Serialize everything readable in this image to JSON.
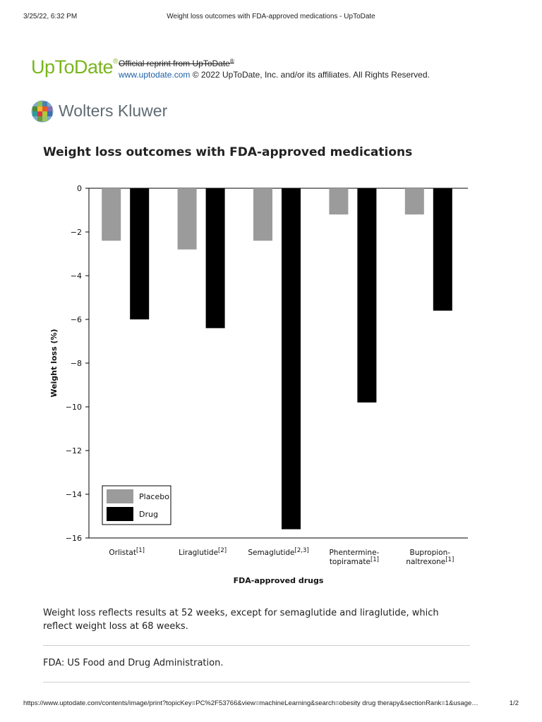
{
  "print_header": {
    "datetime": "3/25/22, 6:32 PM",
    "title": "Weight loss outcomes with FDA-approved medications - UpToDate"
  },
  "brand": {
    "logo_text": "UpToDate",
    "logo_mark": "®",
    "reprint_text": "Official reprint from UpToDate",
    "reprint_mark": "®",
    "site_link": "www.uptodate.com",
    "copyright": "© 2022 UpToDate, Inc. and/or its affiliates. All Rights Reserved."
  },
  "publisher": {
    "name": "Wolters Kluwer",
    "icon": "wolters-kluwer-globe-icon"
  },
  "figure_title": "Weight loss outcomes with FDA-approved medications",
  "chart_data": {
    "type": "bar",
    "xlabel": "FDA-approved drugs",
    "ylabel": "Weight loss (%)",
    "ylim": [
      -16,
      0
    ],
    "yticks": [
      0,
      -2,
      -4,
      -6,
      -8,
      -10,
      -12,
      -14,
      -16
    ],
    "ytick_labels": [
      "0",
      "−2",
      "−4",
      "−6",
      "−8",
      "−10",
      "−12",
      "−14",
      "−16"
    ],
    "categories": [
      {
        "lines": [
          "Orlistat"
        ],
        "ref": "[1]"
      },
      {
        "lines": [
          "Liraglutide"
        ],
        "ref": "[2]"
      },
      {
        "lines": [
          "Semaglutide"
        ],
        "ref": "[2,3]"
      },
      {
        "lines": [
          "Phentermine-",
          "topiramate"
        ],
        "ref": "[1]"
      },
      {
        "lines": [
          "Bupropion-",
          "naltrexone"
        ],
        "ref": "[1]"
      }
    ],
    "series": [
      {
        "name": "Placebo",
        "color": "#9b9b9b",
        "values": [
          -2.4,
          -2.8,
          -2.4,
          -1.2,
          -1.2
        ]
      },
      {
        "name": "Drug",
        "color": "#000000",
        "values": [
          -6.0,
          -6.4,
          -15.6,
          -9.8,
          -5.6
        ]
      }
    ],
    "grid": false,
    "legend_position": "bottom-left"
  },
  "notes": {
    "footnote": "Weight loss reflects results at 52 weeks, except for semaglutide and liraglutide, which reflect weight loss at 68 weeks.",
    "abbreviation": "FDA: US Food and Drug Administration."
  },
  "print_footer": {
    "url": "https://www.uptodate.com/contents/image/print?topicKey=PC%2F53766&view=machineLearning&search=obesity drug therapy&sectionRank=1&usage…",
    "page": "1/2"
  }
}
